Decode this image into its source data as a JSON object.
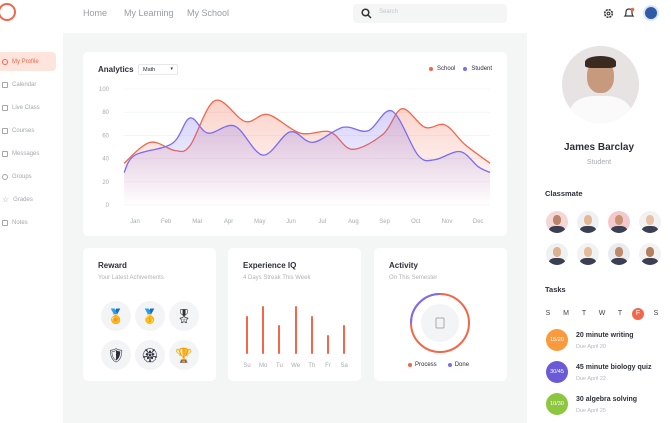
{
  "header": {
    "nav": [
      "Home",
      "My Learning",
      "My School"
    ],
    "search_placeholder": "Search",
    "icons": [
      "gear-icon",
      "bell-icon",
      "school-logo"
    ]
  },
  "sidebar": {
    "items": [
      {
        "label": "My Profile",
        "active": true
      },
      {
        "label": "Calendar"
      },
      {
        "label": "Live Class"
      },
      {
        "label": "Courses"
      },
      {
        "label": "Messages"
      },
      {
        "label": "Groups"
      },
      {
        "label": "Grades"
      },
      {
        "label": "Notes"
      }
    ]
  },
  "analytics": {
    "title": "Analytics",
    "subject": "Math"
  },
  "chart_data": {
    "type": "area",
    "title": "Analytics",
    "categories": [
      "Jan",
      "Feb",
      "Mar",
      "Apr",
      "May",
      "Jun",
      "Jul",
      "Aug",
      "Sep",
      "Oct",
      "Nov",
      "Dec"
    ],
    "ylim": [
      0,
      100
    ],
    "yticks": [
      0,
      20,
      40,
      60,
      80,
      100
    ],
    "grid": true,
    "legend": "top-right",
    "series": [
      {
        "name": "School",
        "color": "#f2664a",
        "points": [
          [
            0.65,
            36
          ],
          [
            1.48,
            54
          ],
          [
            2.28,
            47
          ],
          [
            2.76,
            51
          ],
          [
            3.56,
            90
          ],
          [
            4.53,
            72
          ],
          [
            5.26,
            78
          ],
          [
            6.29,
            62
          ],
          [
            7.25,
            63
          ],
          [
            7.96,
            48
          ],
          [
            8.95,
            61
          ],
          [
            9.56,
            83
          ],
          [
            10.29,
            67
          ],
          [
            10.94,
            69
          ],
          [
            11.58,
            52
          ],
          [
            12.38,
            36
          ]
        ]
      },
      {
        "name": "Student",
        "color": "#7b6cf0",
        "points": [
          [
            0.65,
            28
          ],
          [
            1.0,
            43
          ],
          [
            2.19,
            53
          ],
          [
            2.76,
            75
          ],
          [
            3.34,
            62
          ],
          [
            4.2,
            68
          ],
          [
            5.1,
            43
          ],
          [
            5.97,
            63
          ],
          [
            6.7,
            54
          ],
          [
            7.67,
            67
          ],
          [
            8.47,
            64
          ],
          [
            9.24,
            81
          ],
          [
            10.07,
            43
          ],
          [
            10.6,
            39
          ],
          [
            11.42,
            46
          ],
          [
            12.0,
            33
          ],
          [
            12.38,
            28
          ]
        ]
      }
    ]
  },
  "reward": {
    "title": "Reward",
    "subtitle": "Your Latest Achivements",
    "badges": [
      "laurel-medal-icon",
      "number-one-medal-icon",
      "star-rosette-icon",
      "shield-badge-icon",
      "gold-medal-icon",
      "trophy-icon"
    ]
  },
  "experience": {
    "title": "Experience IQ",
    "subtitle": "4 Days Streak This Week",
    "days": [
      "Su",
      "Mo",
      "Tu",
      "We",
      "Th",
      "Fr",
      "Sa"
    ],
    "levels": [
      0.8,
      1,
      0.6,
      1,
      0.8,
      0.4,
      0.6
    ],
    "color": "#f2664a"
  },
  "activity": {
    "title": "Activity",
    "subtitle": "On This Semester",
    "process_label": "Process",
    "done_label": "Done",
    "done_fraction": 0.25,
    "process_color": "#f2664a",
    "done_color": "#7b6cf0"
  },
  "profile": {
    "name": "James Barclay",
    "role": "Student"
  },
  "classmate": {
    "title": "Classmate"
  },
  "tasks": {
    "title": "Tasks",
    "days": [
      "S",
      "M",
      "T",
      "W",
      "T",
      "F",
      "S"
    ],
    "active_day": 5,
    "items": [
      {
        "progress": "15/20",
        "title": "20 minute writing",
        "due": "Due April 20",
        "color": "#f99a3c"
      },
      {
        "progress": "30/45",
        "title": "45 minute biology quiz",
        "due": "Due April 22",
        "color": "#6a5ad8"
      },
      {
        "progress": "10/30",
        "title": "30 algebra solving",
        "due": "Due April 25",
        "color": "#8dc63f"
      }
    ]
  }
}
